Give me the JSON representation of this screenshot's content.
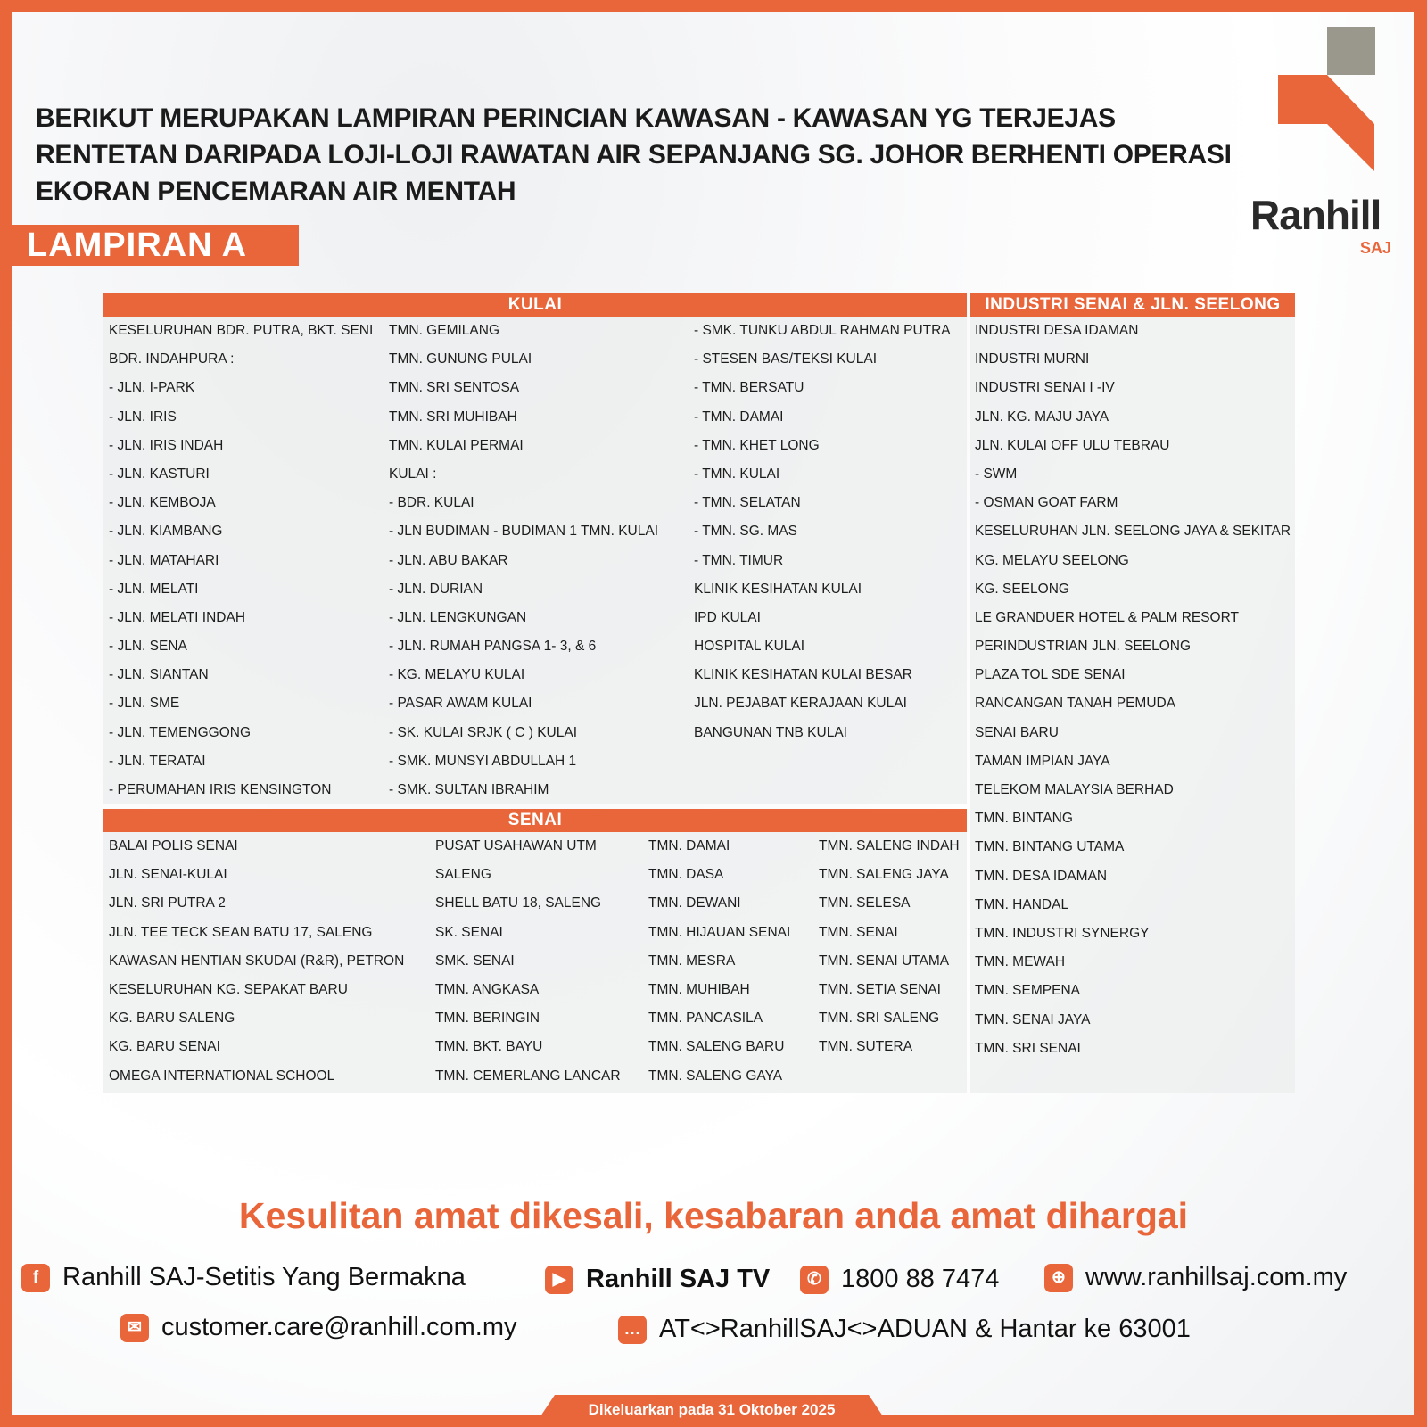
{
  "title": "BERIKUT MERUPAKAN LAMPIRAN PERINCIAN KAWASAN - KAWASAN YG TERJEJAS RENTETAN DARIPADA LOJI-LOJI RAWATAN AIR SEPANJANG SG. JOHOR BERHENTI OPERASI EKORAN PENCEMARAN AIR MENTAH",
  "banner": "LAMPIRAN A",
  "logo": {
    "name": "Ranhill",
    "sub": "SAJ"
  },
  "colors": {
    "accent": "#e9653a",
    "logo_gray": "#9a978d"
  },
  "kulai": {
    "header": "KULAI",
    "columns": [
      [
        "KESELURUHAN BDR. PUTRA, BKT. SENI",
        "BDR. INDAHPURA :",
        "- JLN. I-PARK",
        "- JLN. IRIS",
        "- JLN. IRIS INDAH",
        "- JLN. KASTURI",
        "- JLN. KEMBOJA",
        "- JLN. KIAMBANG",
        "- JLN. MATAHARI",
        "- JLN. MELATI",
        "- JLN. MELATI INDAH",
        "- JLN. SENA",
        "- JLN. SIANTAN",
        "- JLN. SME",
        "- JLN. TEMENGGONG",
        "- JLN. TERATAI",
        "- PERUMAHAN IRIS KENSINGTON"
      ],
      [
        "TMN. GEMILANG",
        "TMN. GUNUNG PULAI",
        "TMN. SRI SENTOSA",
        "TMN. SRI MUHIBAH",
        "TMN. KULAI PERMAI",
        "KULAI :",
        "- BDR. KULAI",
        "- JLN BUDIMAN - BUDIMAN 1 TMN. KULAI",
        "- JLN. ABU BAKAR",
        "- JLN. DURIAN",
        "- JLN. LENGKUNGAN",
        "- JLN. RUMAH PANGSA 1- 3, & 6",
        "- KG. MELAYU KULAI",
        "- PASAR AWAM KULAI",
        "- SK. KULAI SRJK ( C ) KULAI",
        "- SMK. MUNSYI ABDULLAH 1",
        "- SMK. SULTAN IBRAHIM"
      ],
      [
        "- SMK. TUNKU ABDUL RAHMAN PUTRA",
        "- STESEN BAS/TEKSI KULAI",
        "- TMN. BERSATU",
        "- TMN. DAMAI",
        "- TMN. KHET LONG",
        "- TMN. KULAI",
        "- TMN. SELATAN",
        "- TMN. SG. MAS",
        "- TMN. TIMUR",
        "KLINIK KESIHATAN KULAI",
        "IPD KULAI",
        "HOSPITAL KULAI",
        "KLINIK KESIHATAN KULAI BESAR",
        "JLN. PEJABAT KERAJAAN KULAI",
        "BANGUNAN TNB KULAI"
      ]
    ]
  },
  "senai": {
    "header": "SENAI",
    "columns": [
      [
        "BALAI POLIS SENAI",
        "JLN. SENAI-KULAI",
        "JLN. SRI PUTRA 2",
        "JLN. TEE TECK SEAN BATU 17, SALENG",
        "KAWASAN HENTIAN SKUDAI (R&R), PETRON",
        "KESELURUHAN KG. SEPAKAT BARU",
        "KG. BARU SALENG",
        "KG. BARU SENAI",
        "OMEGA INTERNATIONAL SCHOOL"
      ],
      [
        "PUSAT USAHAWAN UTM",
        "SALENG",
        "SHELL BATU 18, SALENG",
        "SK. SENAI",
        "SMK. SENAI",
        "TMN. ANGKASA",
        "TMN. BERINGIN",
        "TMN. BKT. BAYU",
        "TMN. CEMERLANG LANCAR"
      ],
      [
        "TMN. DAMAI",
        "TMN. DASA",
        "TMN. DEWANI",
        "TMN. HIJAUAN SENAI",
        "TMN. MESRA",
        "TMN. MUHIBAH",
        "TMN. PANCASILA",
        "TMN. SALENG BARU",
        "TMN. SALENG GAYA"
      ],
      [
        "TMN. SALENG INDAH",
        "TMN. SALENG JAYA",
        "TMN. SELESA",
        "TMN. SENAI",
        "TMN. SENAI UTAMA",
        "TMN. SETIA SENAI",
        "TMN. SRI SALENG",
        "TMN. SUTERA"
      ]
    ]
  },
  "industri": {
    "header": "INDUSTRI SENAI & JLN. SEELONG",
    "columns": [
      [
        "INDUSTRI DESA IDAMAN",
        "INDUSTRI MURNI",
        "INDUSTRI SENAI I -IV",
        "JLN. KG. MAJU JAYA",
        "JLN. KULAI OFF ULU TEBRAU",
        "- SWM",
        "- OSMAN GOAT FARM",
        "KESELURUHAN JLN. SEELONG JAYA & SEKITAR",
        "KG. MELAYU SEELONG",
        "KG. SEELONG",
        "LE GRANDUER HOTEL & PALM RESORT",
        "PERINDUSTRIAN JLN. SEELONG",
        "PLAZA TOL SDE SENAI",
        "RANCANGAN TANAH PEMUDA",
        "SENAI BARU",
        "TAMAN IMPIAN JAYA",
        "TELEKOM MALAYSIA BERHAD",
        "TMN. BINTANG",
        "TMN. BINTANG UTAMA",
        "TMN. DESA IDAMAN",
        "TMN. HANDAL",
        "TMN. INDUSTRI SYNERGY",
        "TMN. MEWAH",
        "TMN. SEMPENA",
        "TMN. SENAI JAYA",
        "TMN. SRI SENAI"
      ]
    ]
  },
  "tagline": "Kesulitan amat dikesali, kesabaran anda amat dihargai",
  "contacts": {
    "facebook": {
      "icon": "facebook-icon",
      "text": "Ranhill SAJ-Setitis Yang Bermakna"
    },
    "youtube": {
      "icon": "youtube-icon",
      "text": "Ranhill SAJ TV"
    },
    "phone": {
      "icon": "phone-icon",
      "text": "1800 88 7474"
    },
    "website": {
      "icon": "globe-icon",
      "text": "www.ranhillsaj.com.my"
    },
    "email": {
      "icon": "email-icon",
      "text": "customer.care@ranhill.com.my"
    },
    "sms": {
      "icon": "chat-icon",
      "text": "AT<>RanhillSAJ<>ADUAN & Hantar ke 63001"
    }
  },
  "footer": "Dikeluarkan pada 31 Oktober 2025"
}
